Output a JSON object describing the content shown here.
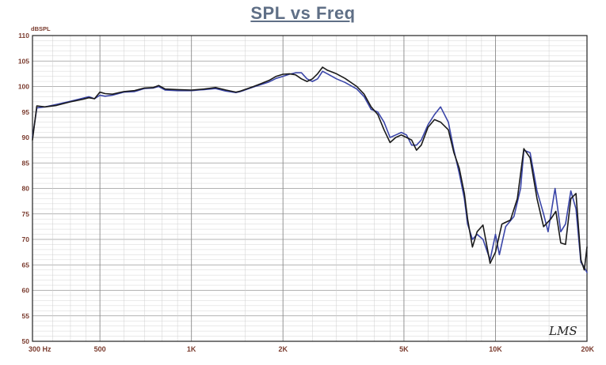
{
  "chart_data": {
    "type": "line",
    "title": "SPL vs Freq",
    "ylabel": "dBSPL",
    "xlabel": "",
    "x_scale": "log",
    "xlim": [
      300,
      20000
    ],
    "ylim": [
      50,
      110
    ],
    "y_ticks": [
      50,
      55,
      60,
      65,
      70,
      75,
      80,
      85,
      90,
      95,
      100,
      105,
      110
    ],
    "x_ticks": [
      {
        "value": 300,
        "label": "300 Hz"
      },
      {
        "value": 500,
        "label": "500"
      },
      {
        "value": 1000,
        "label": "1K"
      },
      {
        "value": 2000,
        "label": "2K"
      },
      {
        "value": 5000,
        "label": "5K"
      },
      {
        "value": 10000,
        "label": "10K"
      },
      {
        "value": 20000,
        "label": "20K"
      }
    ],
    "grid": true,
    "watermark": "LMS",
    "series": [
      {
        "color": "#1a1a1a",
        "points": [
          [
            300,
            89.5
          ],
          [
            310,
            96.2
          ],
          [
            330,
            96.0
          ],
          [
            360,
            96.3
          ],
          [
            400,
            97.0
          ],
          [
            440,
            97.5
          ],
          [
            460,
            97.8
          ],
          [
            480,
            97.6
          ],
          [
            500,
            98.9
          ],
          [
            520,
            98.6
          ],
          [
            550,
            98.5
          ],
          [
            600,
            99.0
          ],
          [
            650,
            99.2
          ],
          [
            700,
            99.7
          ],
          [
            750,
            99.8
          ],
          [
            780,
            100.2
          ],
          [
            820,
            99.5
          ],
          [
            900,
            99.4
          ],
          [
            1000,
            99.3
          ],
          [
            1100,
            99.5
          ],
          [
            1200,
            99.8
          ],
          [
            1300,
            99.3
          ],
          [
            1400,
            98.9
          ],
          [
            1450,
            99.1
          ],
          [
            1600,
            100.0
          ],
          [
            1700,
            100.6
          ],
          [
            1800,
            101.2
          ],
          [
            1900,
            102.0
          ],
          [
            2000,
            102.4
          ],
          [
            2100,
            102.5
          ],
          [
            2200,
            102.3
          ],
          [
            2300,
            101.5
          ],
          [
            2400,
            101.0
          ],
          [
            2500,
            101.5
          ],
          [
            2600,
            102.5
          ],
          [
            2700,
            103.8
          ],
          [
            2800,
            103.2
          ],
          [
            3000,
            102.5
          ],
          [
            3200,
            101.6
          ],
          [
            3500,
            100.0
          ],
          [
            3700,
            98.5
          ],
          [
            3900,
            96.0
          ],
          [
            4100,
            94.5
          ],
          [
            4300,
            91.5
          ],
          [
            4500,
            89.0
          ],
          [
            4700,
            90.0
          ],
          [
            4900,
            90.5
          ],
          [
            5100,
            90.0
          ],
          [
            5300,
            89.5
          ],
          [
            5500,
            87.5
          ],
          [
            5700,
            88.5
          ],
          [
            6000,
            92.0
          ],
          [
            6300,
            93.5
          ],
          [
            6600,
            93.0
          ],
          [
            7000,
            91.5
          ],
          [
            7300,
            87.0
          ],
          [
            7600,
            84.0
          ],
          [
            7900,
            79.0
          ],
          [
            8100,
            74.0
          ],
          [
            8400,
            68.5
          ],
          [
            8700,
            71.5
          ],
          [
            9100,
            72.8
          ],
          [
            9600,
            65.3
          ],
          [
            10000,
            67.5
          ],
          [
            10500,
            73.0
          ],
          [
            11200,
            73.8
          ],
          [
            11800,
            78.0
          ],
          [
            12400,
            87.8
          ],
          [
            13000,
            86.0
          ],
          [
            13700,
            78.0
          ],
          [
            14400,
            72.5
          ],
          [
            15200,
            74.0
          ],
          [
            15800,
            75.5
          ],
          [
            16400,
            69.3
          ],
          [
            17000,
            69.0
          ],
          [
            17700,
            78.0
          ],
          [
            18400,
            79.0
          ],
          [
            19100,
            66.0
          ],
          [
            19600,
            64.0
          ],
          [
            20000,
            68.5
          ]
        ]
      },
      {
        "color": "#3a45a8",
        "points": [
          [
            300,
            90.0
          ],
          [
            310,
            95.8
          ],
          [
            330,
            96.0
          ],
          [
            360,
            96.5
          ],
          [
            400,
            97.1
          ],
          [
            440,
            97.7
          ],
          [
            460,
            98.0
          ],
          [
            480,
            97.6
          ],
          [
            500,
            98.3
          ],
          [
            520,
            98.1
          ],
          [
            550,
            98.3
          ],
          [
            600,
            98.9
          ],
          [
            650,
            99.0
          ],
          [
            700,
            99.6
          ],
          [
            750,
            99.7
          ],
          [
            780,
            100.0
          ],
          [
            820,
            99.3
          ],
          [
            900,
            99.2
          ],
          [
            1000,
            99.2
          ],
          [
            1100,
            99.4
          ],
          [
            1200,
            99.6
          ],
          [
            1300,
            99.1
          ],
          [
            1400,
            98.8
          ],
          [
            1450,
            99.0
          ],
          [
            1600,
            99.9
          ],
          [
            1700,
            100.4
          ],
          [
            1800,
            100.9
          ],
          [
            1900,
            101.6
          ],
          [
            2000,
            102.0
          ],
          [
            2100,
            102.4
          ],
          [
            2200,
            102.7
          ],
          [
            2300,
            102.7
          ],
          [
            2400,
            101.5
          ],
          [
            2500,
            101.0
          ],
          [
            2600,
            101.5
          ],
          [
            2700,
            103.0
          ],
          [
            2800,
            102.5
          ],
          [
            3000,
            101.5
          ],
          [
            3200,
            100.8
          ],
          [
            3500,
            99.5
          ],
          [
            3700,
            98.0
          ],
          [
            3900,
            95.5
          ],
          [
            4100,
            95.0
          ],
          [
            4300,
            93.0
          ],
          [
            4500,
            90.0
          ],
          [
            4700,
            90.5
          ],
          [
            4900,
            91.0
          ],
          [
            5100,
            90.5
          ],
          [
            5300,
            88.5
          ],
          [
            5500,
            88.5
          ],
          [
            5700,
            89.5
          ],
          [
            6000,
            92.5
          ],
          [
            6300,
            94.5
          ],
          [
            6600,
            96.0
          ],
          [
            7000,
            93.0
          ],
          [
            7300,
            87.5
          ],
          [
            7600,
            83.0
          ],
          [
            7900,
            78.0
          ],
          [
            8100,
            73.0
          ],
          [
            8400,
            70.0
          ],
          [
            8700,
            71.0
          ],
          [
            9100,
            70.0
          ],
          [
            9600,
            66.0
          ],
          [
            10000,
            71.0
          ],
          [
            10300,
            67.0
          ],
          [
            10800,
            72.5
          ],
          [
            11500,
            74.5
          ],
          [
            12100,
            80.0
          ],
          [
            12400,
            87.5
          ],
          [
            13000,
            87.0
          ],
          [
            13700,
            79.5
          ],
          [
            14400,
            75.0
          ],
          [
            14900,
            71.5
          ],
          [
            15700,
            80.0
          ],
          [
            16400,
            71.5
          ],
          [
            17000,
            73.0
          ],
          [
            17700,
            79.5
          ],
          [
            18400,
            76.0
          ],
          [
            19100,
            65.5
          ],
          [
            19600,
            64.5
          ],
          [
            20000,
            63.5
          ]
        ]
      }
    ]
  }
}
